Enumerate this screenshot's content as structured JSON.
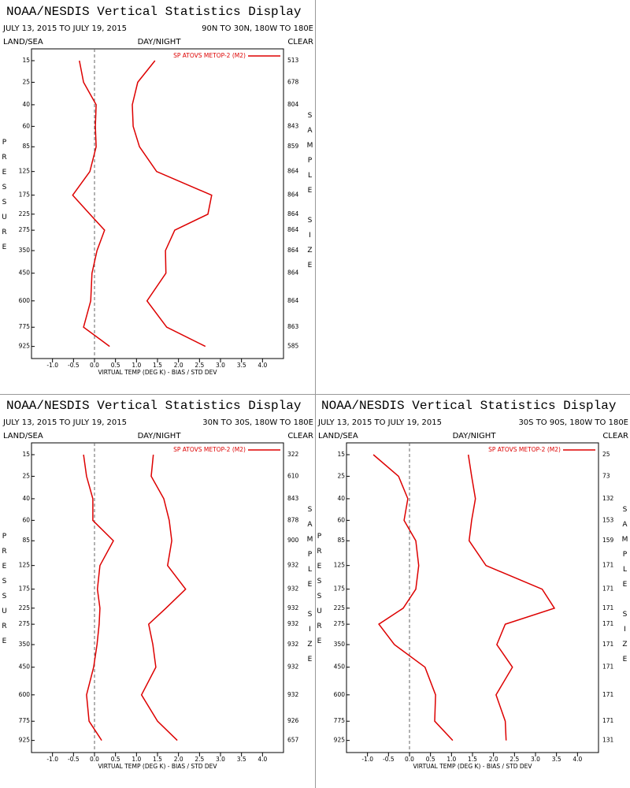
{
  "chart_data": [
    {
      "type": "line",
      "title": "NOAA/NESDIS Vertical Statistics Display",
      "date_range": "JULY 13, 2015 TO JULY 19, 2015",
      "region": "90N TO 30N, 180W TO 180E",
      "corner_labels": [
        "LAND/SEA",
        "DAY/NIGHT",
        "CLEAR"
      ],
      "ylabel": "PRESSURE",
      "y2label": "SAMPLE SIZE",
      "xlabel": "VIRTUAL TEMP (DEG K) - BIAS / STD DEV",
      "y": [
        15,
        25,
        40,
        60,
        85,
        125,
        175,
        225,
        275,
        350,
        450,
        600,
        775,
        925
      ],
      "sample_sizes": [
        513,
        678,
        804,
        843,
        859,
        864,
        864,
        864,
        864,
        864,
        864,
        864,
        863,
        585
      ],
      "series": [
        {
          "name": "SP ATOVS METOP-2 (M2)",
          "color": "#dd0000",
          "bias": [
            -0.36,
            -0.26,
            0.04,
            0.02,
            0.04,
            -0.11,
            -0.52,
            -0.11,
            0.24,
            0.06,
            -0.06,
            -0.09,
            -0.26,
            0.36
          ],
          "std_dev": [
            1.44,
            1.03,
            0.9,
            0.92,
            1.07,
            1.48,
            2.79,
            2.7,
            1.91,
            1.69,
            1.7,
            1.25,
            1.72,
            2.64
          ]
        }
      ],
      "xlim": [
        -1.5,
        4.5
      ],
      "ylim": [
        11,
        1030
      ],
      "y_scale_power": 0.25,
      "zero_line": true,
      "xticks": [
        {
          "value": -1,
          "label": "-1.0"
        },
        {
          "value": -0.5,
          "label": "-0.5"
        },
        {
          "value": 0,
          "label": "0.0"
        },
        0.5,
        {
          "value": 1,
          "label": "1.0"
        },
        1.5,
        {
          "value": 2,
          "label": "2.0"
        },
        2.5,
        {
          "value": 3,
          "label": "3.0"
        },
        3.5,
        {
          "value": 4,
          "label": "4.0"
        }
      ]
    },
    {
      "type": "line",
      "title": "NOAA/NESDIS Vertical Statistics Display",
      "date_range": "JULY 13, 2015 TO JULY 19, 2015",
      "region": "30N TO 30S, 180W TO 180E",
      "corner_labels": [
        "LAND/SEA",
        "DAY/NIGHT",
        "CLEAR"
      ],
      "ylabel": "PRESSURE",
      "y2label": "SAMPLE SIZE",
      "xlabel": "VIRTUAL TEMP (DEG K) - BIAS / STD DEV",
      "y": [
        15,
        25,
        40,
        60,
        85,
        125,
        175,
        225,
        275,
        350,
        450,
        600,
        775,
        925
      ],
      "sample_sizes": [
        322,
        610,
        843,
        878,
        900,
        932,
        932,
        932,
        932,
        932,
        932,
        932,
        926,
        657
      ],
      "series": [
        {
          "name": "SP ATOVS METOP-2 (M2)",
          "color": "#dd0000",
          "bias": [
            -0.26,
            -0.19,
            -0.04,
            -0.04,
            0.45,
            0.13,
            0.07,
            0.13,
            0.11,
            0.06,
            -0.02,
            -0.19,
            -0.13,
            0.17
          ],
          "std_dev": [
            1.4,
            1.35,
            1.65,
            1.78,
            1.84,
            1.74,
            2.17,
            1.7,
            1.29,
            1.39,
            1.46,
            1.12,
            1.5,
            1.97
          ]
        }
      ],
      "xlim": [
        -1.5,
        4.5
      ],
      "ylim": [
        11,
        1030
      ],
      "y_scale_power": 0.25,
      "zero_line": true,
      "xticks": [
        {
          "value": -1,
          "label": "-1.0"
        },
        {
          "value": -0.5,
          "label": "-0.5"
        },
        {
          "value": 0,
          "label": "0.0"
        },
        0.5,
        {
          "value": 1,
          "label": "1.0"
        },
        1.5,
        {
          "value": 2,
          "label": "2.0"
        },
        2.5,
        {
          "value": 3,
          "label": "3.0"
        },
        3.5,
        {
          "value": 4,
          "label": "4.0"
        }
      ]
    },
    {
      "type": "line",
      "title": "NOAA/NESDIS Vertical Statistics Display",
      "date_range": "JULY 13, 2015 TO JULY 19, 2015",
      "region": "30S TO 90S, 180W TO 180E",
      "corner_labels": [
        "LAND/SEA",
        "DAY/NIGHT",
        "CLEAR"
      ],
      "ylabel": "PRESSURE",
      "y2label": "SAMPLE SIZE",
      "xlabel": "VIRTUAL TEMP (DEG K) - BIAS / STD DEV",
      "y": [
        15,
        25,
        40,
        60,
        85,
        125,
        175,
        225,
        275,
        350,
        450,
        600,
        775,
        925
      ],
      "sample_sizes": [
        25,
        73,
        132,
        153,
        159,
        171,
        171,
        171,
        171,
        171,
        171,
        171,
        171,
        131
      ],
      "series": [
        {
          "name": "SP ATOVS METOP-2 (M2)",
          "color": "#dd0000",
          "bias": [
            -0.86,
            -0.26,
            -0.04,
            -0.13,
            0.15,
            0.22,
            0.15,
            -0.15,
            -0.73,
            -0.36,
            0.37,
            0.62,
            0.6,
            1.03
          ],
          "std_dev": [
            1.4,
            1.48,
            1.57,
            1.48,
            1.42,
            1.82,
            3.16,
            3.45,
            2.28,
            2.08,
            2.45,
            2.06,
            2.28,
            2.3
          ]
        }
      ],
      "xlim": [
        -1.5,
        4.5
      ],
      "ylim": [
        11,
        1030
      ],
      "y_scale_power": 0.25,
      "zero_line": true,
      "xticks": [
        {
          "value": -1,
          "label": "-1.0"
        },
        {
          "value": -0.5,
          "label": "-0.5"
        },
        {
          "value": 0,
          "label": "0.0"
        },
        0.5,
        {
          "value": 1,
          "label": "1.0"
        },
        1.5,
        {
          "value": 2,
          "label": "2.0"
        },
        2.5,
        {
          "value": 3,
          "label": "3.0"
        },
        3.5,
        {
          "value": 4,
          "label": "4.0"
        }
      ]
    }
  ]
}
